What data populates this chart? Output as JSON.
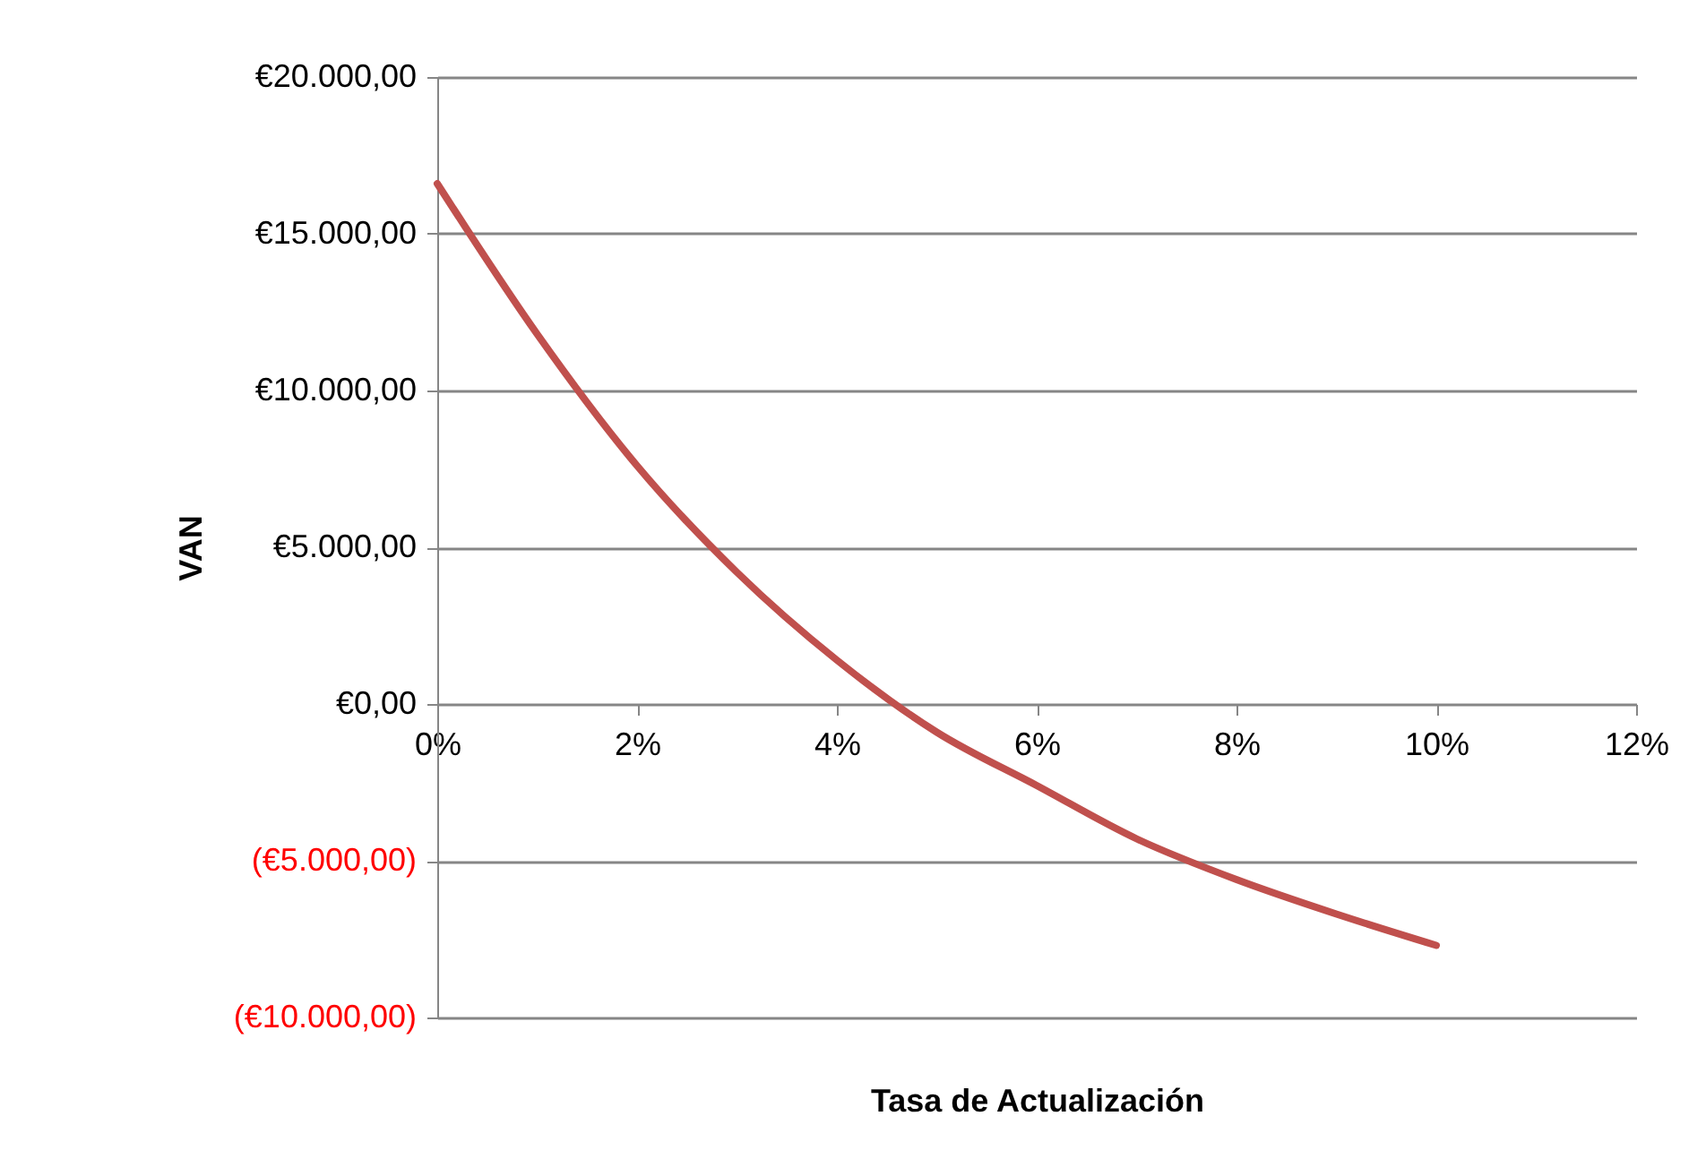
{
  "chart_data": {
    "type": "line",
    "xlabel": "Tasa de Actualización",
    "ylabel": "VAN",
    "x": [
      0,
      1,
      2,
      3,
      4,
      5,
      6,
      7,
      8,
      9,
      10
    ],
    "series": [
      {
        "color": "#c0504d",
        "values": [
          16600,
          11800,
          7600,
          4200,
          1400,
          -900,
          -2600,
          -4300,
          -5600,
          -6700,
          -7700
        ]
      }
    ],
    "xlim": [
      0,
      12
    ],
    "xticks": [
      {
        "value": 0,
        "label": "0%"
      },
      {
        "value": 2,
        "label": "2%"
      },
      {
        "value": 4,
        "label": "4%"
      },
      {
        "value": 6,
        "label": "6%"
      },
      {
        "value": 8,
        "label": "8%"
      },
      {
        "value": 10,
        "label": "10%"
      },
      {
        "value": 12,
        "label": "12%"
      }
    ],
    "ylim": [
      -10000,
      20000
    ],
    "yticks": [
      {
        "value": -10000,
        "label": "(€10.000,00)"
      },
      {
        "value": -5000,
        "label": "(€5.000,00)"
      },
      {
        "value": 0,
        "label": "€0,00"
      },
      {
        "value": 5000,
        "label": "€5.000,00"
      },
      {
        "value": 10000,
        "label": "€10.000,00"
      },
      {
        "value": 15000,
        "label": "€15.000,00"
      },
      {
        "value": 20000,
        "label": "€20.000,00"
      }
    ],
    "grid": "y",
    "marker": "none",
    "line_style": "solid"
  }
}
